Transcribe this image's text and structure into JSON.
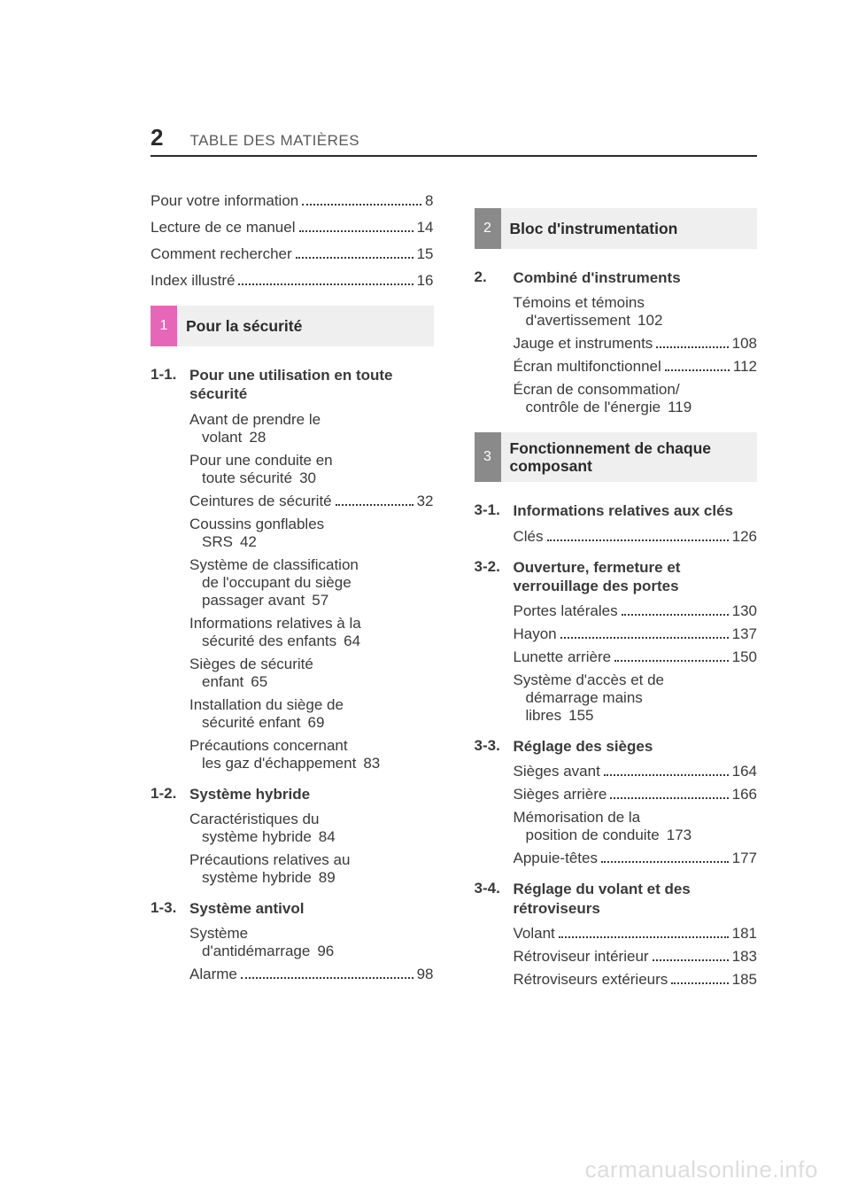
{
  "page_number": "2",
  "header_title": "TABLE DES MATIÈRES",
  "watermark": "carmanualsonline.info",
  "colors": {
    "rule": "#2a2a2a",
    "text": "#3a3a3a",
    "banner_bg": "#efefef",
    "chip_pink": "#e667b7",
    "chip_gray": "#8a8a8a",
    "watermark": "#dddddd"
  },
  "intro": [
    {
      "label": "Pour votre information",
      "page": "8"
    },
    {
      "label": "Lecture de ce manuel",
      "page": "14"
    },
    {
      "label": "Comment rechercher",
      "page": "15"
    },
    {
      "label": "Index illustré",
      "page": "16"
    }
  ],
  "left": {
    "banner": {
      "num": "1",
      "title": "Pour la sécurité",
      "chip_color": "pink"
    },
    "sections": [
      {
        "num": "1-1.",
        "title": "Pour une utilisation en toute sécurité",
        "entries": [
          {
            "l1": "Avant de prendre le",
            "l2": "volant",
            "page": "28"
          },
          {
            "l1": "Pour une conduite en",
            "l2": "toute sécurité",
            "page": "30"
          },
          {
            "l1": "Ceintures de sécurité",
            "page": "32"
          },
          {
            "l1": "Coussins gonflables",
            "l2": "SRS",
            "page": "42"
          },
          {
            "l1": "Système de classification",
            "l2": "de l'occupant du siège",
            "l3": "passager avant",
            "page": "57"
          },
          {
            "l1": "Informations relatives à la",
            "l2": "sécurité des enfants",
            "page": "64"
          },
          {
            "l1": "Sièges de sécurité",
            "l2": "enfant",
            "page": "65"
          },
          {
            "l1": "Installation du siège de",
            "l2": "sécurité enfant",
            "page": "69"
          },
          {
            "l1": "Précautions concernant",
            "l2": "les gaz d'échappement",
            "page": "83"
          }
        ]
      },
      {
        "num": "1-2.",
        "title": "Système hybride",
        "entries": [
          {
            "l1": "Caractéristiques du",
            "l2": "système hybride",
            "page": "84"
          },
          {
            "l1": "Précautions relatives au",
            "l2": "système hybride",
            "page": "89"
          }
        ]
      },
      {
        "num": "1-3.",
        "title": "Système antivol",
        "entries": [
          {
            "l1": "Système",
            "l2": "d'antidémarrage",
            "page": "96"
          },
          {
            "l1": "Alarme",
            "page": "98"
          }
        ]
      }
    ]
  },
  "right": {
    "banner1": {
      "num": "2",
      "title": "Bloc d'instrumentation",
      "chip_color": "gray"
    },
    "sec2": {
      "num": "2.",
      "title": "Combiné d'instruments",
      "entries": [
        {
          "l1": "Témoins et témoins",
          "l2": "d'avertissement",
          "page": "102"
        },
        {
          "l1": "Jauge et instruments",
          "page": "108"
        },
        {
          "l1": "Écran multifonctionnel",
          "page": "112"
        },
        {
          "l1": "Écran de consommation/",
          "l2": "contrôle de l'énergie",
          "page": "119"
        }
      ]
    },
    "banner2": {
      "num": "3",
      "title": "Fonctionnement de chaque composant",
      "chip_color": "gray"
    },
    "sections": [
      {
        "num": "3-1.",
        "title": "Informations relatives aux clés",
        "entries": [
          {
            "l1": "Clés",
            "page": "126"
          }
        ]
      },
      {
        "num": "3-2.",
        "title": "Ouverture, fermeture et verrouillage des portes",
        "entries": [
          {
            "l1": "Portes latérales",
            "page": "130"
          },
          {
            "l1": "Hayon",
            "page": "137"
          },
          {
            "l1": "Lunette arrière",
            "page": "150"
          },
          {
            "l1": "Système d'accès et de",
            "l2": "démarrage mains",
            "l3": "libres",
            "page": "155"
          }
        ]
      },
      {
        "num": "3-3.",
        "title": "Réglage des sièges",
        "entries": [
          {
            "l1": "Sièges avant",
            "page": "164"
          },
          {
            "l1": "Sièges arrière",
            "page": "166"
          },
          {
            "l1": "Mémorisation de la",
            "l2": "position de conduite",
            "page": "173"
          },
          {
            "l1": "Appuie-têtes",
            "page": "177"
          }
        ]
      },
      {
        "num": "3-4.",
        "title": "Réglage du volant et des rétroviseurs",
        "entries": [
          {
            "l1": "Volant",
            "page": "181"
          },
          {
            "l1": "Rétroviseur intérieur",
            "page": "183"
          },
          {
            "l1": "Rétroviseurs extérieurs",
            "page": "185"
          }
        ]
      }
    ]
  }
}
